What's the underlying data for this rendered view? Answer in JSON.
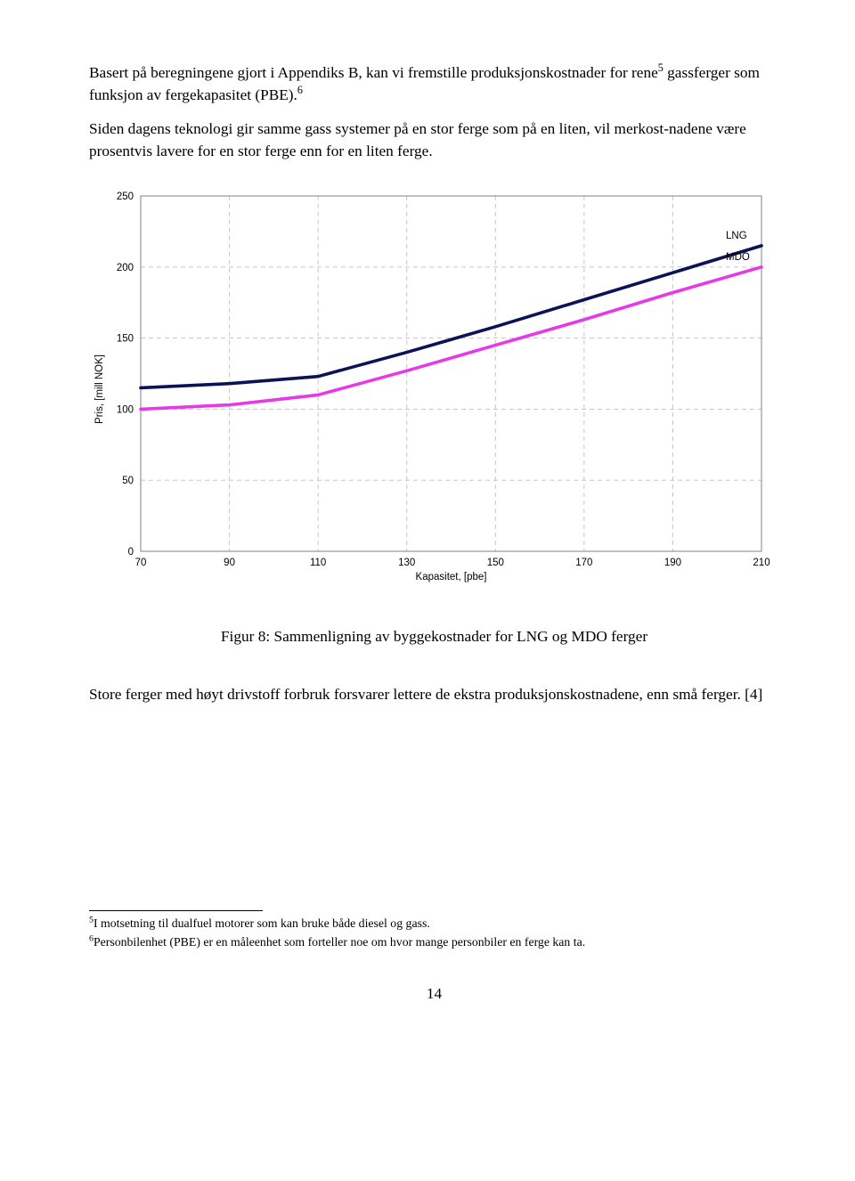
{
  "para1_pre": "Basert på beregningene gjort i Appendiks B, kan vi fremstille produksjonskostnader for rene",
  "para1_sup": "5",
  "para1_post": " gassferger som funksjon av fergekapasitet (PBE).",
  "para1_sup2": "6",
  "para2": "Siden dagens teknologi gir samme gass systemer på en stor ferge som på en liten, vil merkost-nadene være prosentvis lavere for en stor ferge enn for en liten ferge.",
  "chart": {
    "type": "line",
    "background_color": "#ffffff",
    "plot_border_color": "#808080",
    "gridline_color": "#c0c0c0",
    "ylabel": "Pris, [mill NOK]",
    "xlabel": "Kapasitet, [pbe]",
    "xlim": [
      70,
      210
    ],
    "xtick_step": 20,
    "xticks": [
      70,
      90,
      110,
      130,
      150,
      170,
      190,
      210
    ],
    "ylim": [
      0,
      250
    ],
    "ytick_step": 50,
    "yticks": [
      0,
      50,
      100,
      150,
      200,
      250
    ],
    "tick_fontsize": 11.5,
    "label_fontsize": 11.5,
    "series": [
      {
        "name": "LNG",
        "color": "#0c1256",
        "width": 3.6,
        "x": [
          70,
          90,
          110,
          130,
          150,
          170,
          190,
          210
        ],
        "y": [
          115,
          118,
          123,
          140,
          158,
          177,
          196,
          215
        ]
      },
      {
        "name": "MDO",
        "color": "#e63ae6",
        "width": 3.6,
        "x": [
          70,
          90,
          110,
          130,
          150,
          170,
          190,
          210
        ],
        "y": [
          100,
          103,
          110,
          127,
          145,
          163,
          182,
          200
        ]
      }
    ]
  },
  "caption": "Figur 8: Sammenligning av byggekostnader for LNG og MDO ferger",
  "para3": "Store ferger med høyt drivstoff forbruk forsvarer lettere de ekstra produksjonskostnadene, enn små ferger. [4]",
  "footnote5_sup": "5",
  "footnote5": "I motsetning til dualfuel motorer som kan bruke både diesel og gass.",
  "footnote6_sup": "6",
  "footnote6": "Personbilenhet (PBE) er en måleenhet som forteller noe om hvor mange personbiler en ferge kan ta.",
  "page_number": "14"
}
